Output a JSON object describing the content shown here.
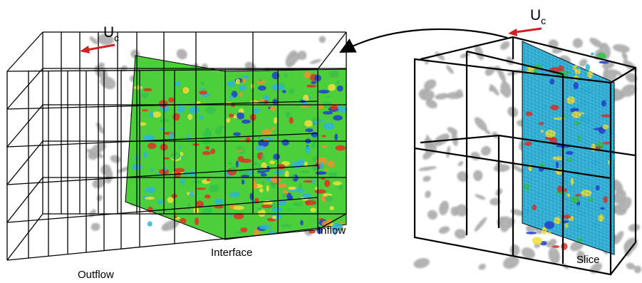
{
  "labels": {
    "uc_left": "U",
    "uc_left_sub": "c",
    "uc_right": "U",
    "uc_right_sub": "c",
    "outflow": "Outflow",
    "interface": "Interface",
    "inflow": "Inflow",
    "slice": "Slice"
  },
  "colors": {
    "arrow": "#d42020",
    "grid": "#000000",
    "turbulence": "#9a9a9a",
    "plane_low": "#1f3fd0",
    "plane_mid": "#35c24a",
    "plane_high": "#e03020",
    "plane_base": "#4ccf3a",
    "plane_base_right": "#38b8d8"
  },
  "icons": {
    "flow_arrow": "left-arrow-icon",
    "transfer_arrow": "curved-arrow-icon"
  }
}
